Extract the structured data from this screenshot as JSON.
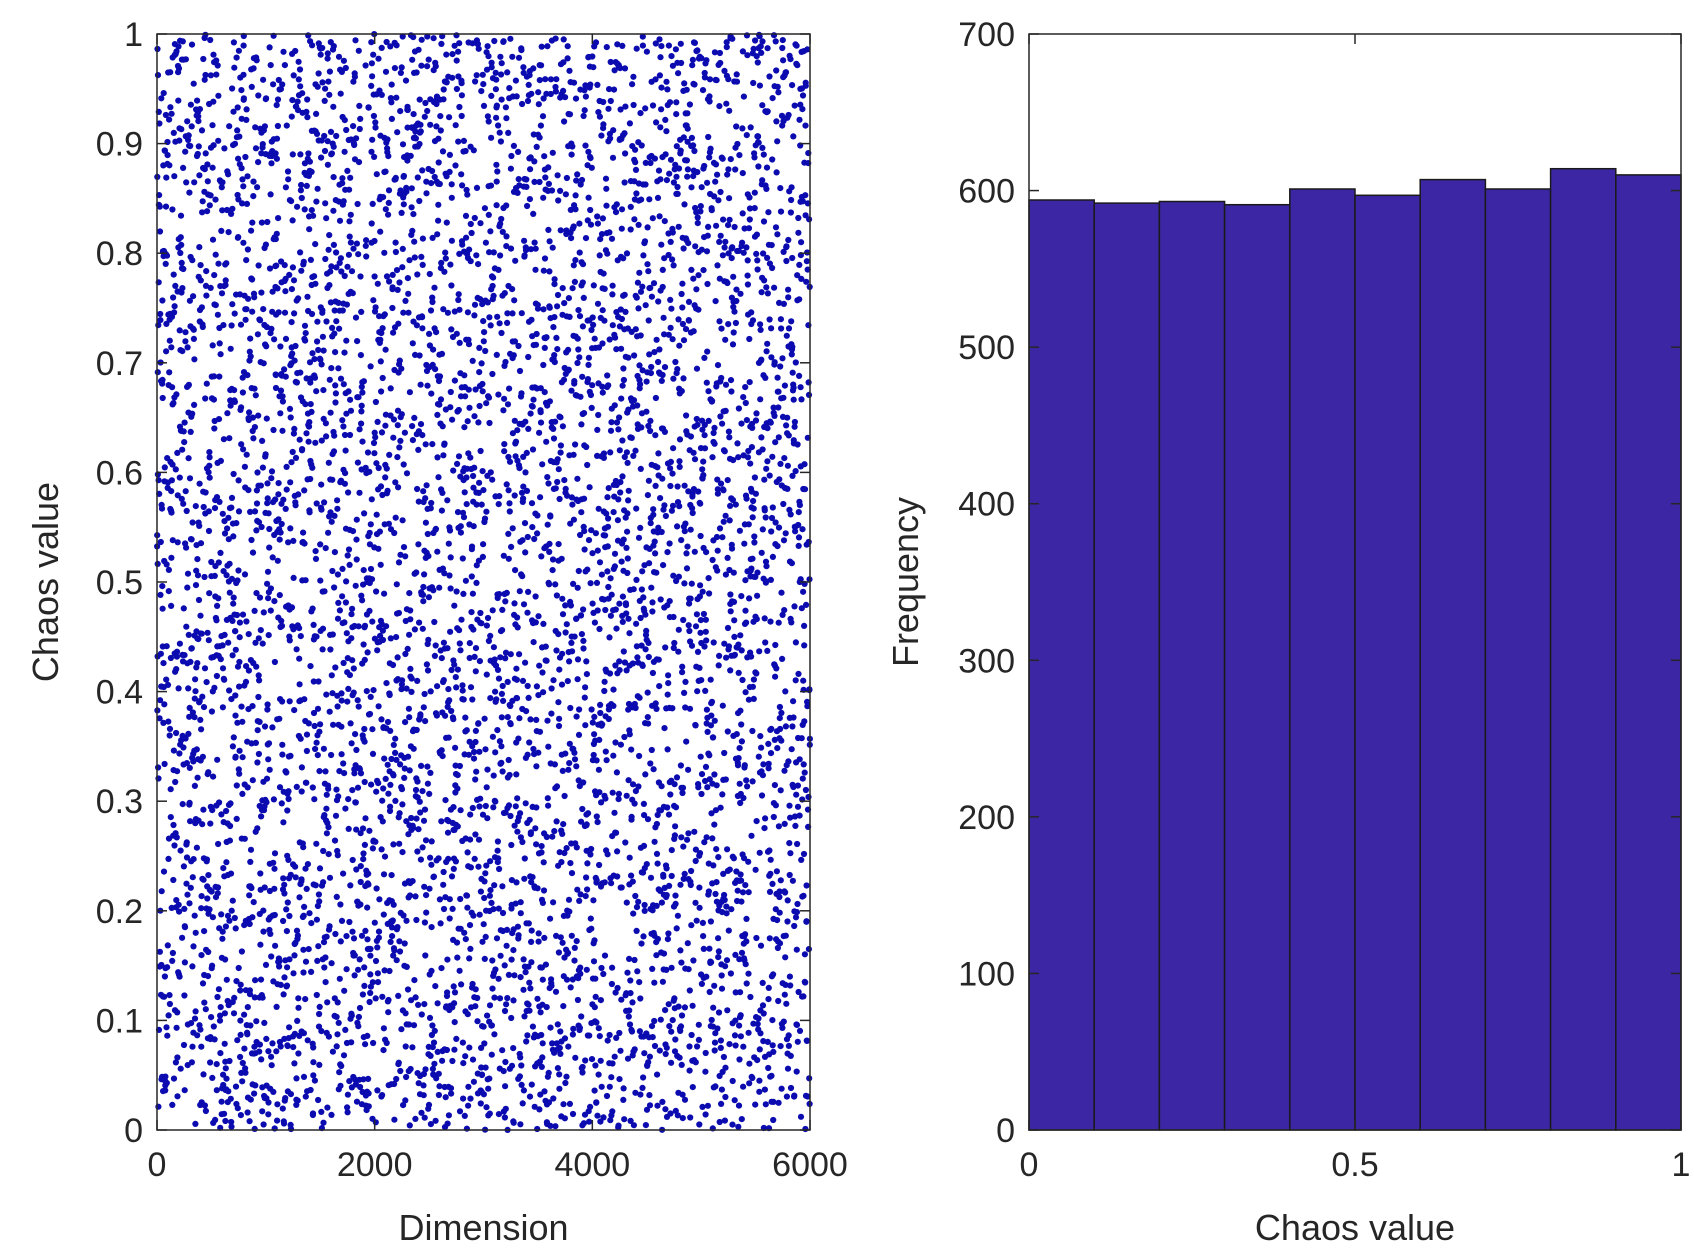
{
  "chart_data": [
    {
      "type": "scatter",
      "xlabel": "Dimension",
      "ylabel": "Chaos value",
      "xlim": [
        0,
        6000
      ],
      "ylim": [
        0,
        1
      ],
      "xticks": [
        0,
        2000,
        4000,
        6000
      ],
      "xtick_labels": [
        "0",
        "2000",
        "4000",
        "6000"
      ],
      "yticks": [
        0,
        0.1,
        0.2,
        0.3,
        0.4,
        0.5,
        0.6,
        0.7,
        0.8,
        0.9,
        1
      ],
      "ytick_labels": [
        "0",
        "0.1",
        "0.2",
        "0.3",
        "0.4",
        "0.5",
        "0.6",
        "0.7",
        "0.8",
        "0.9",
        "1"
      ],
      "n_points": 6000,
      "distribution": "uniform",
      "color": "#0b0bb0",
      "grid": false
    },
    {
      "type": "bar",
      "histogram": true,
      "xlabel": "Chaos value",
      "ylabel": "Frequency",
      "xlim": [
        0,
        1
      ],
      "ylim": [
        0,
        700
      ],
      "xticks": [
        0,
        0.5,
        1
      ],
      "xtick_labels": [
        "0",
        "0.5",
        "1"
      ],
      "yticks": [
        0,
        100,
        200,
        300,
        400,
        500,
        600,
        700
      ],
      "ytick_labels": [
        "0",
        "100",
        "200",
        "300",
        "400",
        "500",
        "600",
        "700"
      ],
      "bin_edges": [
        0,
        0.1,
        0.2,
        0.3,
        0.4,
        0.5,
        0.6,
        0.7,
        0.8,
        0.9,
        1.0
      ],
      "values": [
        594,
        592,
        593,
        591,
        601,
        597,
        607,
        601,
        614,
        610
      ],
      "color": "#3c26a4",
      "edge_color": "#1a1a1a",
      "grid": false
    }
  ]
}
